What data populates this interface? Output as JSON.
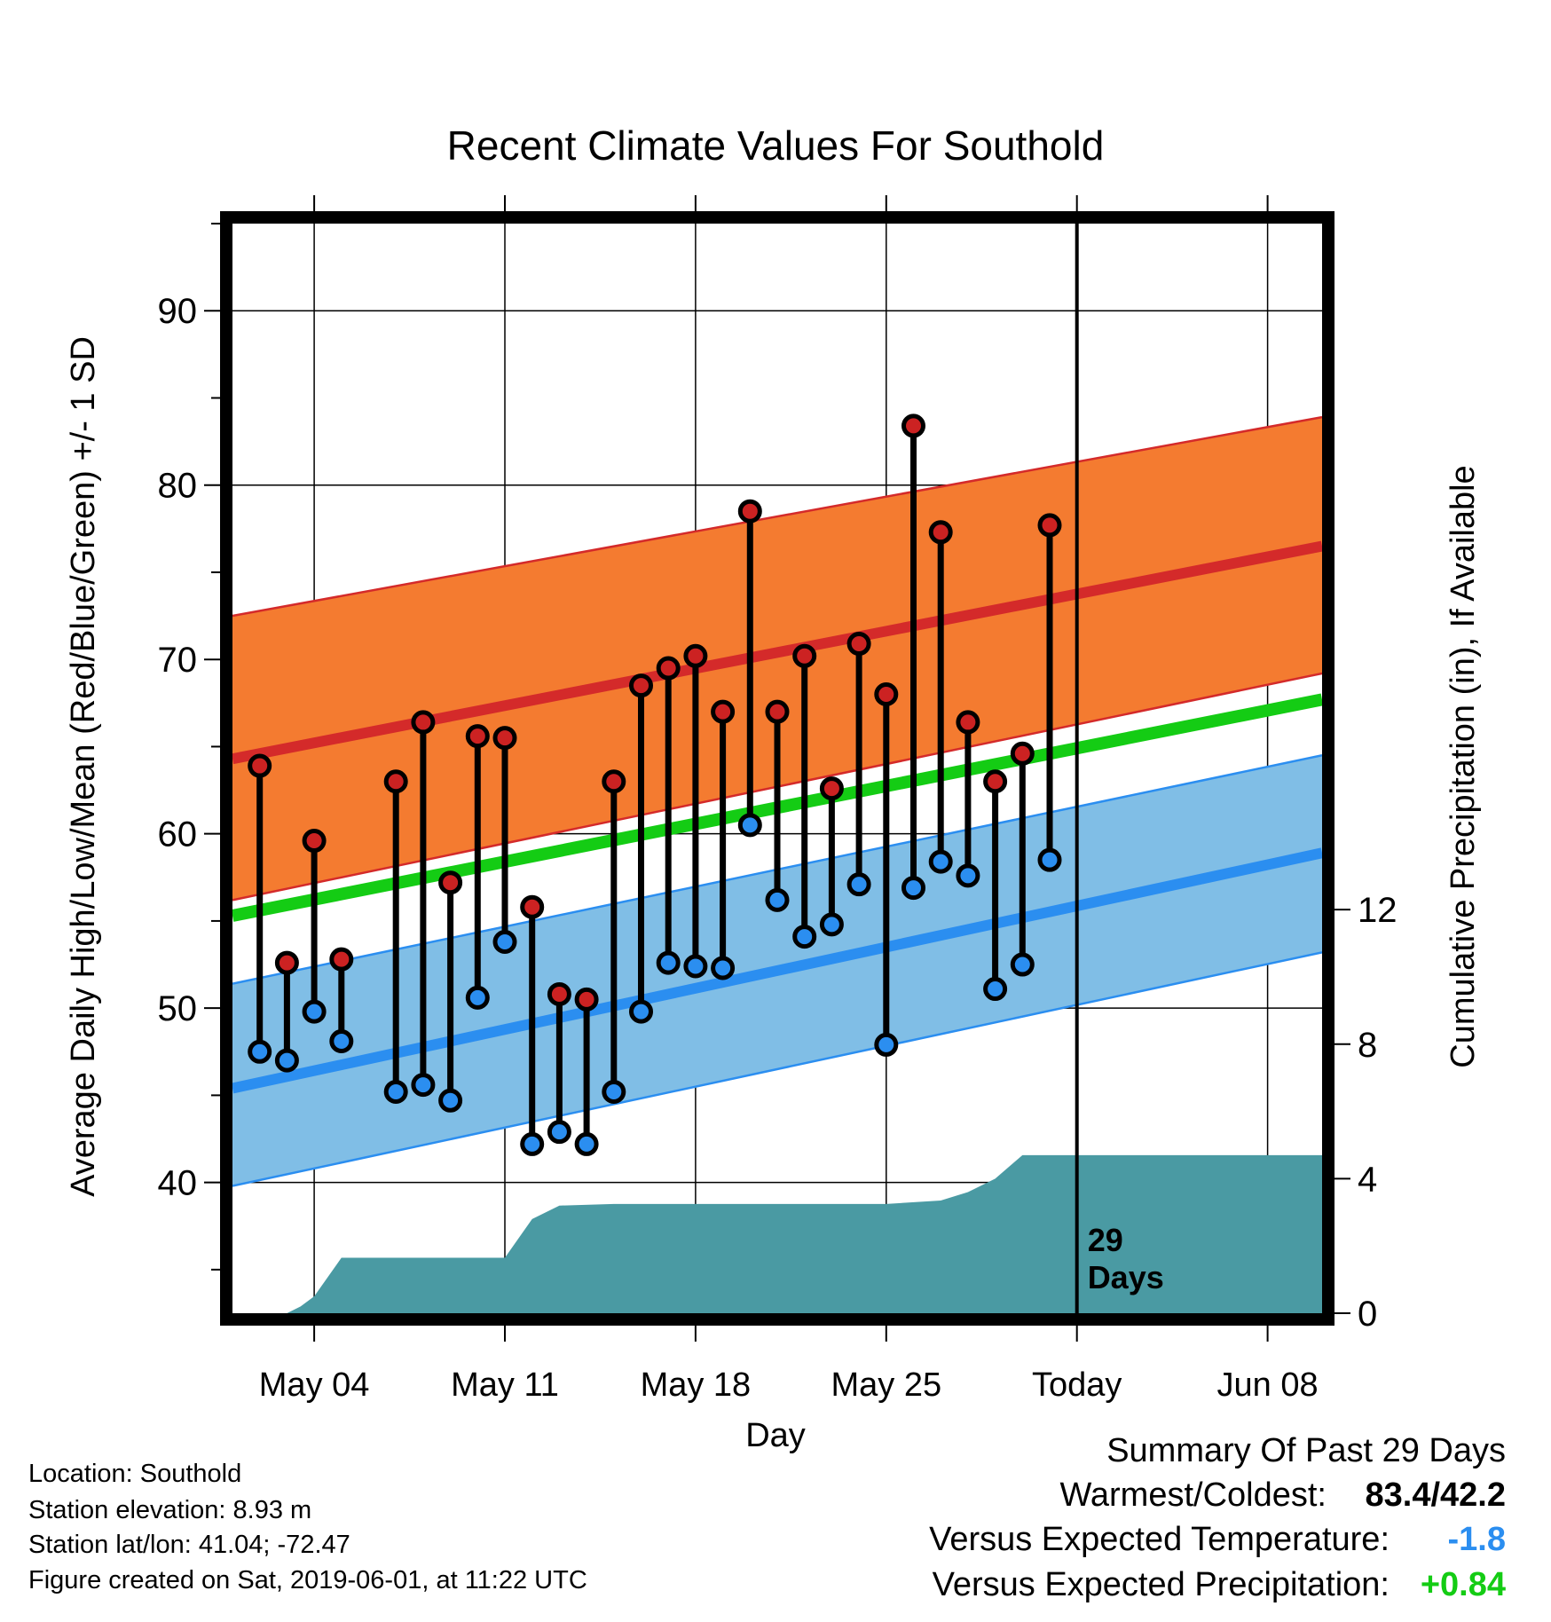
{
  "chart_data": {
    "type": "line",
    "title": "Recent Climate Values For Southold",
    "xlabel": "Day",
    "ylabel": "Average Daily High/Low/Mean (Red/Blue/Green) +/- 1 SD",
    "y2label": "Cumulative Precipitation (in), If Available",
    "xlim": [
      "2019-05-01",
      "2019-06-10"
    ],
    "ylim": [
      32.5,
      95
    ],
    "y2lim": [
      0,
      32.4
    ],
    "x_ticks": [
      {
        "date": "2019-05-04",
        "label": "May 04"
      },
      {
        "date": "2019-05-11",
        "label": "May 11"
      },
      {
        "date": "2019-05-18",
        "label": "May 18"
      },
      {
        "date": "2019-05-25",
        "label": "May 25"
      },
      {
        "date": "2019-06-01",
        "label": "Today"
      },
      {
        "date": "2019-06-08",
        "label": "Jun 08"
      }
    ],
    "y_ticks": [
      "40",
      "50",
      "60",
      "70",
      "80",
      "90"
    ],
    "y2_ticks": [
      "0",
      "4",
      "8",
      "12"
    ],
    "today": "2019-06-01",
    "today_label_line1": "29",
    "today_label_line2": "Days",
    "normal_high": {
      "dates": [
        "2019-05-01",
        "2019-06-10"
      ],
      "mean": [
        64.3,
        76.5
      ],
      "upper": [
        72.5,
        83.9
      ],
      "lower": [
        56.2,
        69.2
      ]
    },
    "normal_low": {
      "dates": [
        "2019-05-01",
        "2019-06-10"
      ],
      "mean": [
        45.4,
        58.9
      ],
      "upper": [
        51.4,
        64.5
      ],
      "lower": [
        39.8,
        53.2
      ]
    },
    "normal_mean": {
      "dates": [
        "2019-05-01",
        "2019-06-10"
      ],
      "values": [
        55.3,
        67.7
      ]
    },
    "daily": {
      "dates": [
        "2019-05-02",
        "2019-05-03",
        "2019-05-04",
        "2019-05-05",
        "2019-05-07",
        "2019-05-08",
        "2019-05-09",
        "2019-05-10",
        "2019-05-11",
        "2019-05-12",
        "2019-05-13",
        "2019-05-14",
        "2019-05-15",
        "2019-05-16",
        "2019-05-17",
        "2019-05-18",
        "2019-05-19",
        "2019-05-20",
        "2019-05-21",
        "2019-05-22",
        "2019-05-23",
        "2019-05-24",
        "2019-05-25",
        "2019-05-26",
        "2019-05-27",
        "2019-05-28",
        "2019-05-29",
        "2019-05-30",
        "2019-05-31"
      ],
      "high": [
        63.9,
        52.6,
        59.6,
        52.8,
        63.0,
        66.4,
        57.2,
        65.6,
        65.5,
        55.8,
        50.8,
        50.5,
        63.0,
        68.5,
        69.5,
        70.2,
        67.0,
        78.5,
        67.0,
        70.2,
        62.6,
        70.9,
        68.0,
        83.4,
        77.3,
        66.4,
        63.0,
        64.6,
        77.7
      ],
      "low": [
        47.5,
        47.0,
        49.8,
        48.1,
        45.2,
        45.6,
        44.7,
        50.6,
        53.8,
        42.2,
        42.9,
        42.2,
        45.2,
        49.8,
        52.6,
        52.4,
        52.3,
        60.5,
        56.2,
        54.1,
        54.8,
        57.1,
        47.9,
        56.9,
        58.4,
        57.6,
        51.1,
        52.5,
        58.5
      ]
    },
    "precipitation": {
      "dates": [
        "2019-05-01",
        "2019-05-02",
        "2019-05-03",
        "2019-05-03.5",
        "2019-05-04",
        "2019-05-05",
        "2019-05-11",
        "2019-05-12",
        "2019-05-13",
        "2019-05-15",
        "2019-05-20",
        "2019-05-25",
        "2019-05-27",
        "2019-05-28",
        "2019-05-29",
        "2019-05-30",
        "2019-06-10"
      ],
      "values": [
        0,
        0,
        0,
        0.2,
        0.5,
        1.65,
        1.65,
        2.8,
        3.2,
        3.25,
        3.25,
        3.25,
        3.35,
        3.6,
        4.0,
        4.7,
        4.7
      ]
    }
  },
  "info": {
    "location": "Location: Southold",
    "elevation": "Station elevation: 8.93 m",
    "latlon": "Station lat/lon: 41.04; -72.47",
    "created": "Figure created on Sat, 2019-06-01, at 11:22 UTC"
  },
  "summary": {
    "title": "Summary Of Past 29 Days",
    "warm_cold_label": "Warmest/Coldest:",
    "warm_cold_value": "83.4/42.2",
    "temp_label": "Versus Expected Temperature:",
    "temp_value": "-1.8",
    "precip_label": "Versus Expected Precipitation:",
    "precip_value": "+0.84"
  },
  "colors": {
    "high_band": "#f47b30",
    "high_line": "#d42a2a",
    "low_band": "#80bee6",
    "low_line": "#2b8ef0",
    "mean_line": "#14cc14",
    "precip": "#4a9aa3",
    "high_marker": "#cc2222",
    "low_marker": "#2b8ef0",
    "temp_value": "#2b8ef0",
    "precip_value": "#14cc14"
  }
}
